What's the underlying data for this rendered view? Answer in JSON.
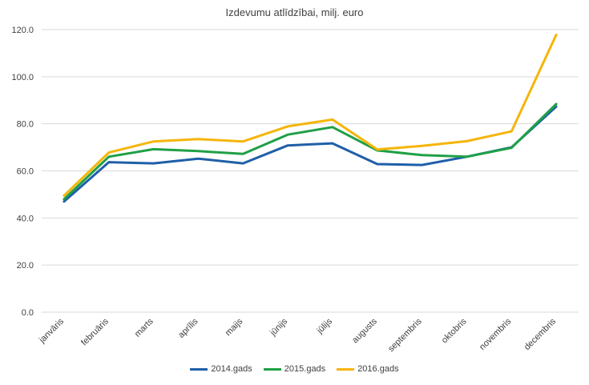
{
  "chart_data": {
    "type": "line",
    "title": "Izdevumu atlīdzībai, milj. euro",
    "xlabel": "",
    "ylabel": "",
    "ylim": [
      0,
      120
    ],
    "yticks": [
      "0.0",
      "20.0",
      "40.0",
      "60.0",
      "80.0",
      "100.0",
      "120.0"
    ],
    "grid": true,
    "legend_position": "bottom",
    "categories": [
      "janvāris",
      "februāris",
      "marts",
      "aprīlis",
      "maijs",
      "jūnijs",
      "jūlijs",
      "augusts",
      "septembris",
      "oktobris",
      "novembris",
      "decembris"
    ],
    "series": [
      {
        "name": "2014.gads",
        "color": "#1f5fa8",
        "values": [
          47.0,
          63.7,
          63.2,
          65.2,
          63.2,
          70.8,
          71.7,
          62.9,
          62.5,
          66.0,
          70.0,
          87.3
        ]
      },
      {
        "name": "2015.gads",
        "color": "#1fa046",
        "values": [
          48.0,
          66.0,
          69.2,
          68.4,
          67.2,
          75.4,
          78.6,
          68.7,
          66.7,
          66.0,
          69.8,
          88.4
        ]
      },
      {
        "name": "2016.gads",
        "color": "#f5b50a",
        "values": [
          49.5,
          67.8,
          72.5,
          73.5,
          72.5,
          78.9,
          81.8,
          69.1,
          70.6,
          72.6,
          76.8,
          117.8
        ]
      }
    ]
  }
}
